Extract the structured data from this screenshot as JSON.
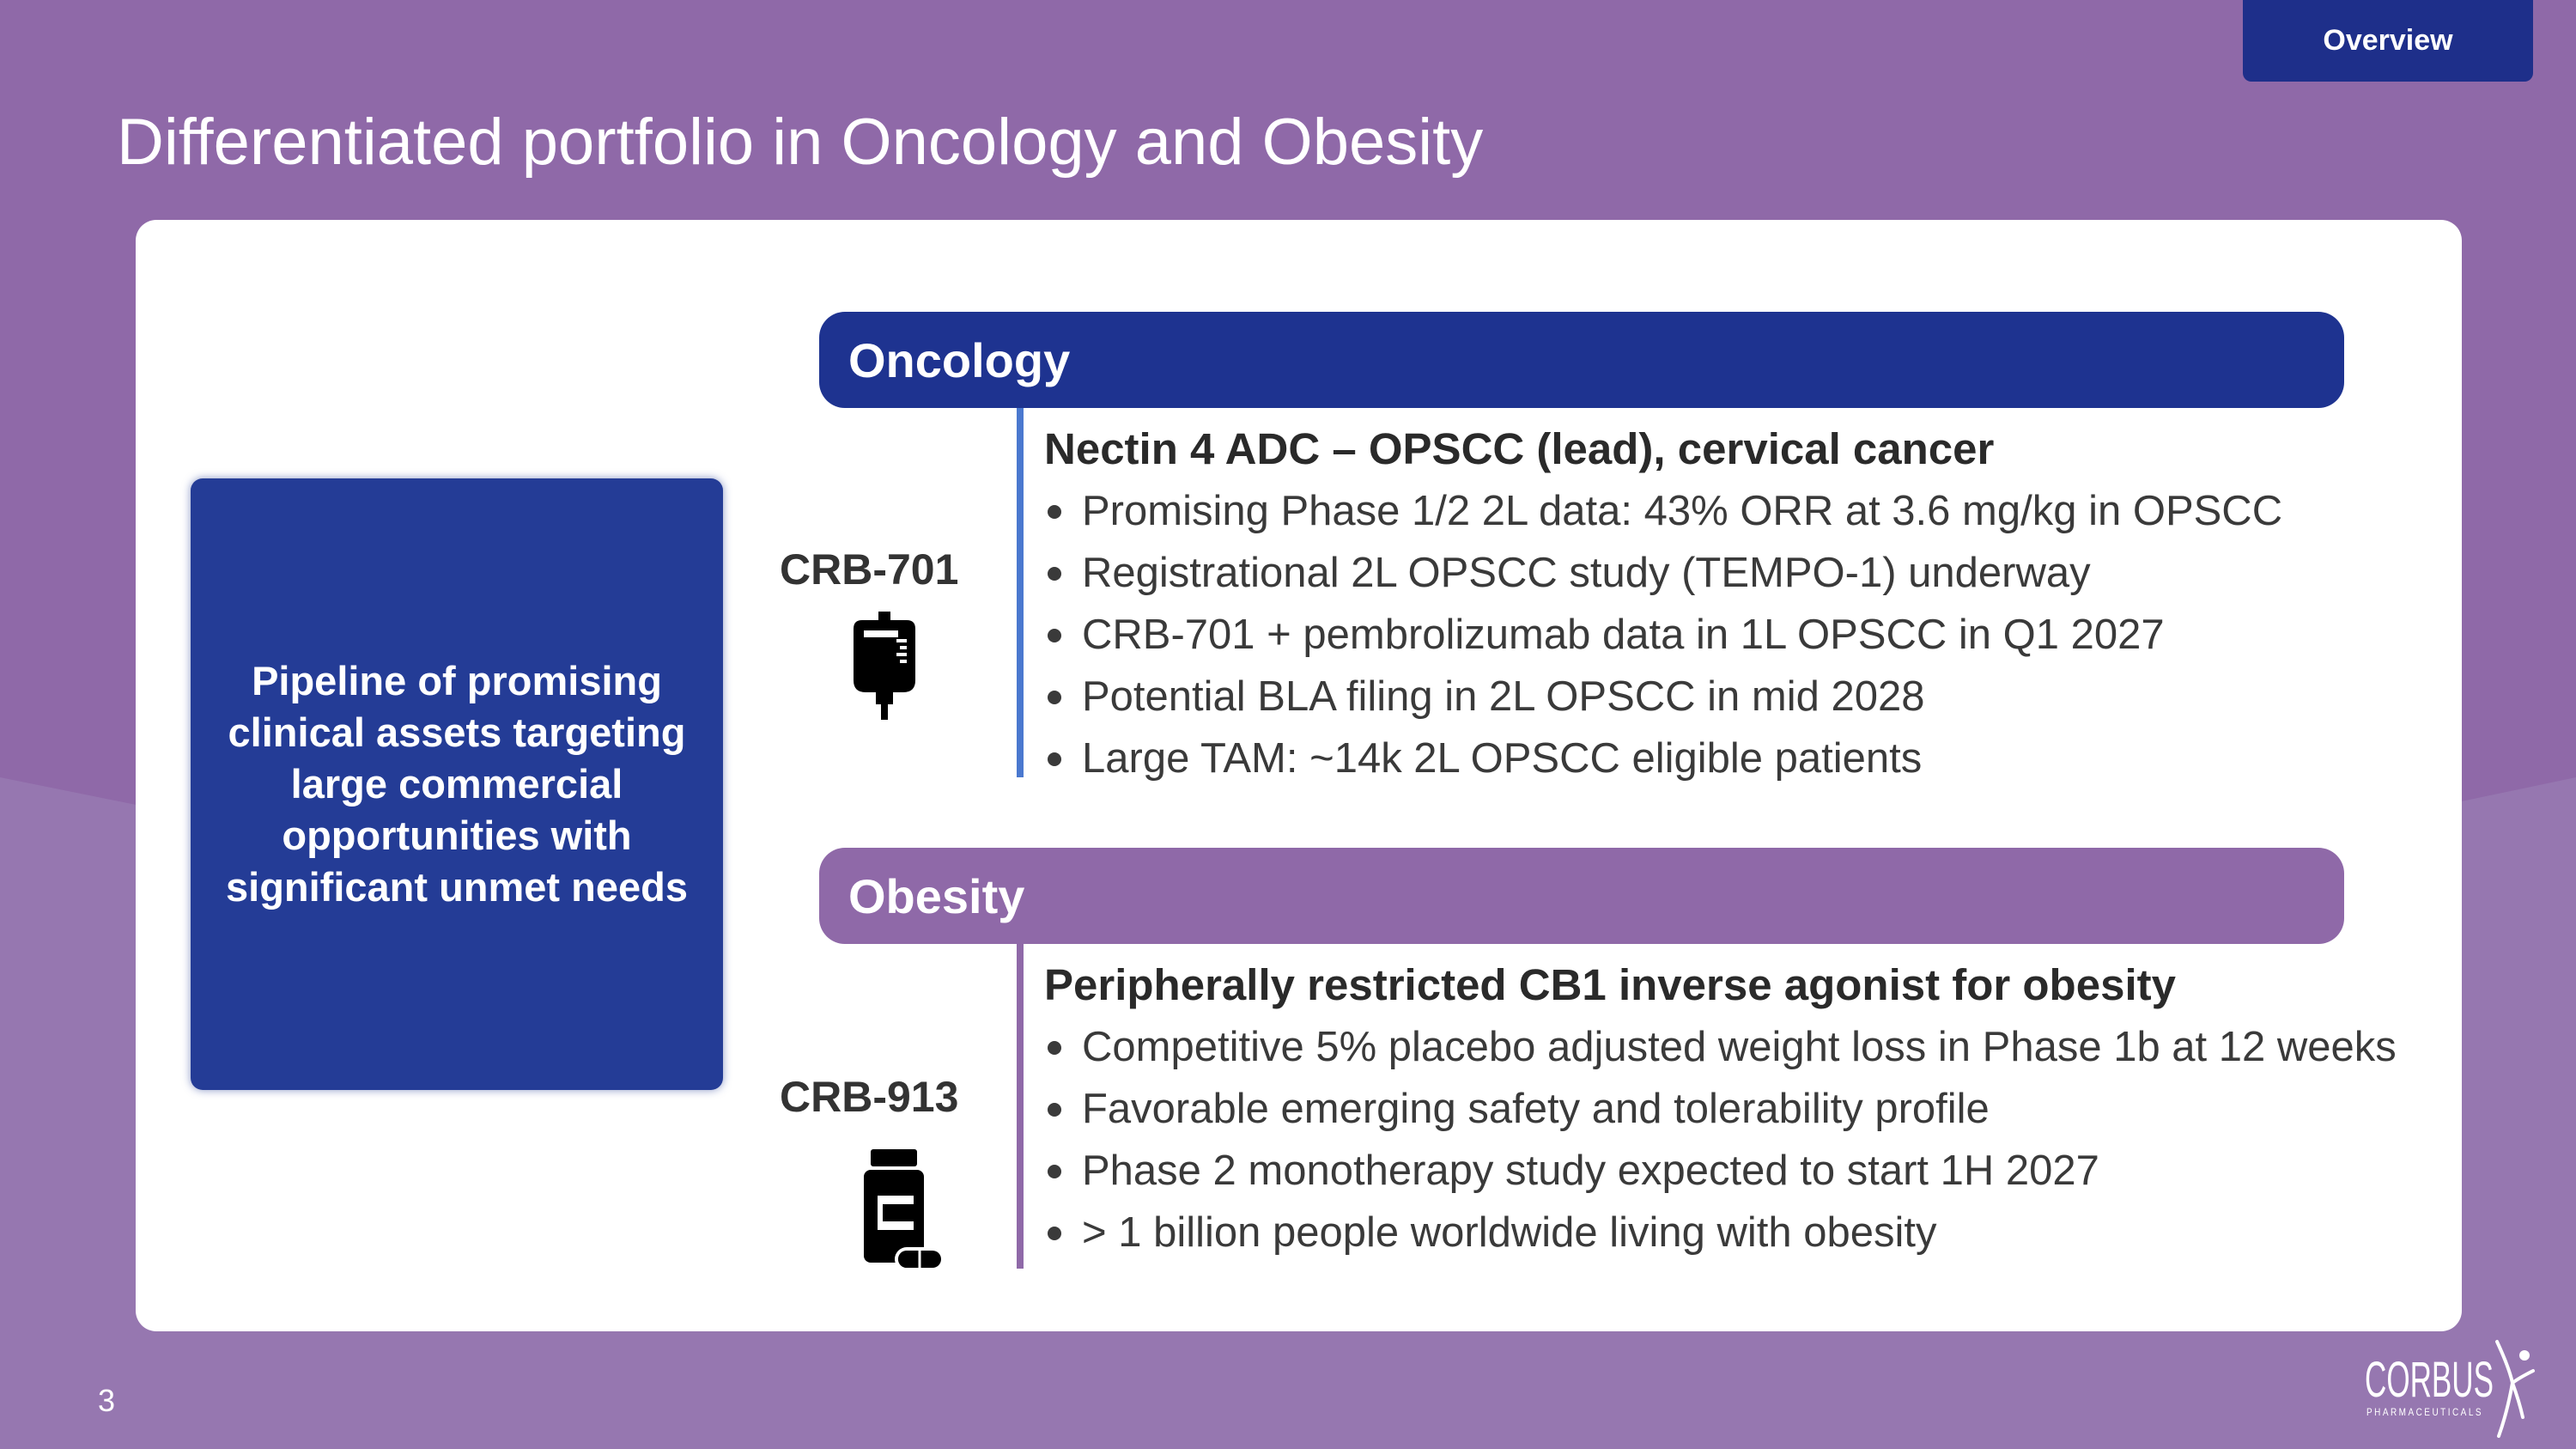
{
  "header": {
    "tab_label": "Overview",
    "title": "Differentiated portfolio in Oncology and Obesity"
  },
  "pipeline": {
    "text": "Pipeline of promising clinical assets targeting large commercial opportunities with significant unmet needs"
  },
  "sections": [
    {
      "label": "Oncology",
      "color": "#1e3390",
      "asset": "CRB-701",
      "icon": "iv-bag-icon",
      "heading": "Nectin 4 ADC – OPSCC (lead), cervical cancer",
      "bullets": [
        "Promising Phase 1/2 2L data: 43% ORR at 3.6 mg/kg in OPSCC",
        "Registrational 2L OPSCC study (TEMPO-1) underway",
        "CRB-701 + pembrolizumab data in 1L OPSCC in Q1 2027",
        "Potential BLA filing in 2L OPSCC in mid 2028",
        "Large TAM: ~14k 2L OPSCC eligible patients"
      ]
    },
    {
      "label": "Obesity",
      "color": "#8f69a8",
      "asset": "CRB-913",
      "icon": "pill-bottle-icon",
      "heading": "Peripherally restricted CB1 inverse agonist for obesity",
      "bullets": [
        "Competitive 5% placebo adjusted weight loss in Phase 1b at 12 weeks",
        "Favorable emerging safety and tolerability profile",
        "Phase 2 monotherapy study expected to start 1H 2027",
        "> 1 billion people worldwide living with obesity"
      ]
    }
  ],
  "footer": {
    "page_number": "3",
    "logo_main": "CORBUS",
    "logo_sub": "PHARMACEUTICALS"
  },
  "colors": {
    "background": "#8f69a8",
    "navy": "#1e2f8a",
    "accent_blue": "#4a78cf"
  }
}
